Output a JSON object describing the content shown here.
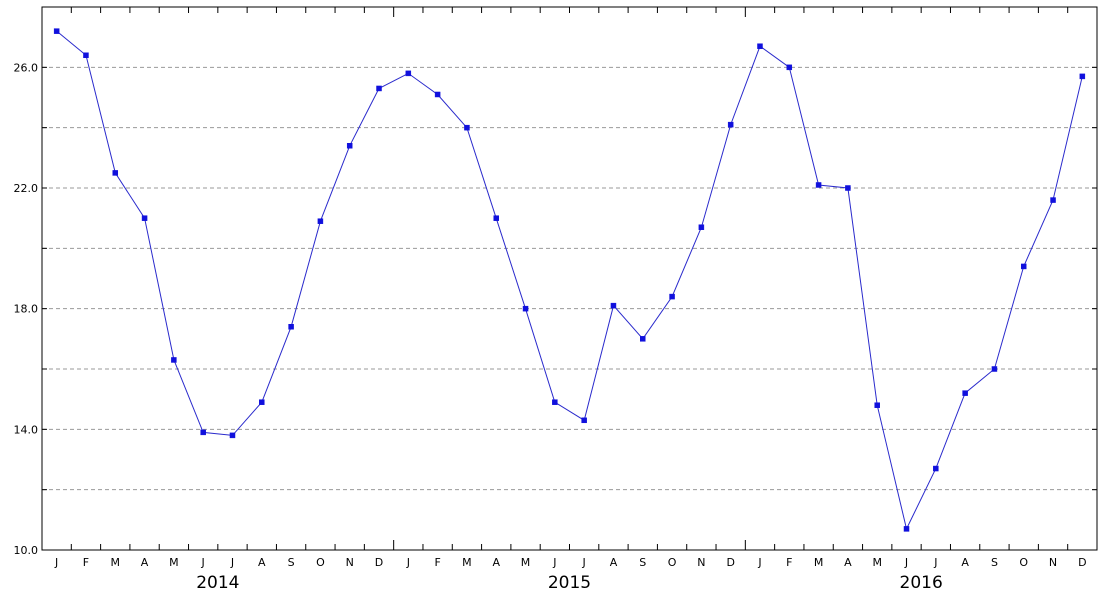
{
  "chart_data": {
    "type": "line",
    "title": "",
    "xlabel": "",
    "ylabel": "",
    "ylim": [
      10,
      28
    ],
    "y_ticks": [
      "10.0",
      "14.0",
      "18.0",
      "22.0",
      "26.0"
    ],
    "grid": true,
    "colors": {
      "line": "#2a2acc",
      "marker": "#1010dd",
      "grid": "#999999",
      "axis": "#000000"
    },
    "months": [
      "J",
      "F",
      "M",
      "A",
      "M",
      "J",
      "J",
      "A",
      "S",
      "O",
      "N",
      "D",
      "J",
      "F",
      "M",
      "A",
      "M",
      "J",
      "J",
      "A",
      "S",
      "O",
      "N",
      "D",
      "J",
      "F",
      "M",
      "A",
      "M",
      "J",
      "J",
      "A",
      "S",
      "O",
      "N",
      "D"
    ],
    "years": [
      "2014",
      "2015",
      "2016"
    ],
    "series": [
      {
        "values": [
          27.2,
          26.4,
          22.5,
          21.0,
          16.3,
          13.9,
          13.8,
          14.9,
          17.4,
          20.9,
          23.4,
          25.3,
          25.8,
          25.1,
          24.0,
          21.0,
          18.0,
          14.9,
          14.3,
          18.1,
          17.0,
          18.4,
          20.7,
          24.1,
          26.7,
          26.0,
          22.1,
          22.0,
          14.8,
          10.7,
          12.7,
          15.2,
          16.0,
          19.4,
          21.6,
          25.7
        ]
      }
    ]
  }
}
